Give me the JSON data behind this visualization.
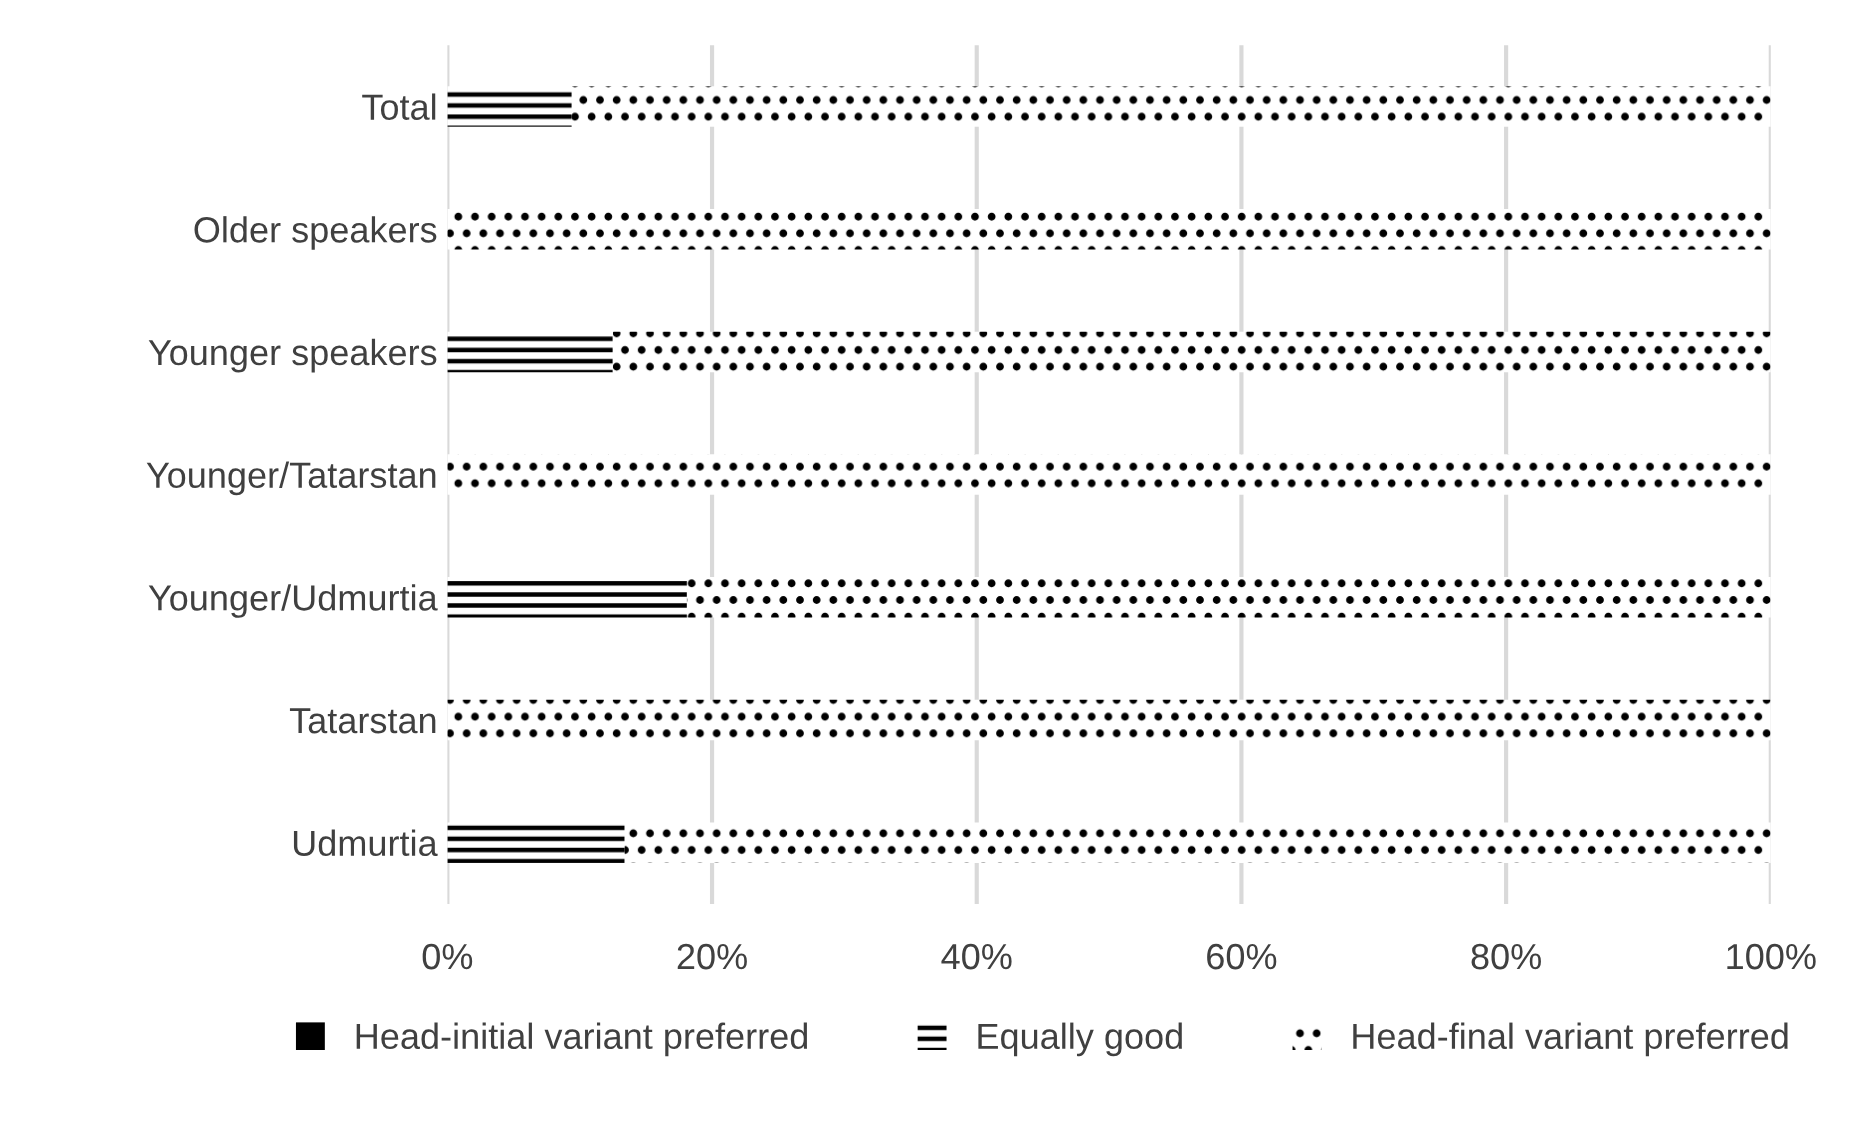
{
  "chart_data": {
    "type": "bar",
    "orientation": "horizontal",
    "stacked": true,
    "categories": [
      "Total",
      "Older speakers",
      "Younger speakers",
      "Younger/Tatarstan",
      "Younger/Udmurtia",
      "Tatarstan",
      "Udmurtia"
    ],
    "series": [
      {
        "name": "Head-initial variant preferred",
        "color": "#000000",
        "values": [
          0,
          0,
          0,
          0,
          0,
          0,
          0
        ]
      },
      {
        "name": "Equally good",
        "color": "#000000",
        "values": [
          9.4,
          0,
          12.5,
          0,
          18.1,
          0,
          13.4
        ]
      },
      {
        "name": "Head-final variant preferred",
        "color": "#000000",
        "values": [
          90.6,
          100,
          87.5,
          100,
          81.9,
          100,
          86.6
        ]
      }
    ],
    "xlim": [
      0,
      100
    ],
    "xticks": [
      {
        "value": 0,
        "label": "0%"
      },
      {
        "value": 20,
        "label": "20%"
      },
      {
        "value": 40,
        "label": "40%"
      },
      {
        "value": 60,
        "label": "60%"
      },
      {
        "value": 80,
        "label": "80%"
      },
      {
        "value": 100,
        "label": "100%"
      }
    ],
    "grid": "x",
    "legend": "bottom"
  }
}
